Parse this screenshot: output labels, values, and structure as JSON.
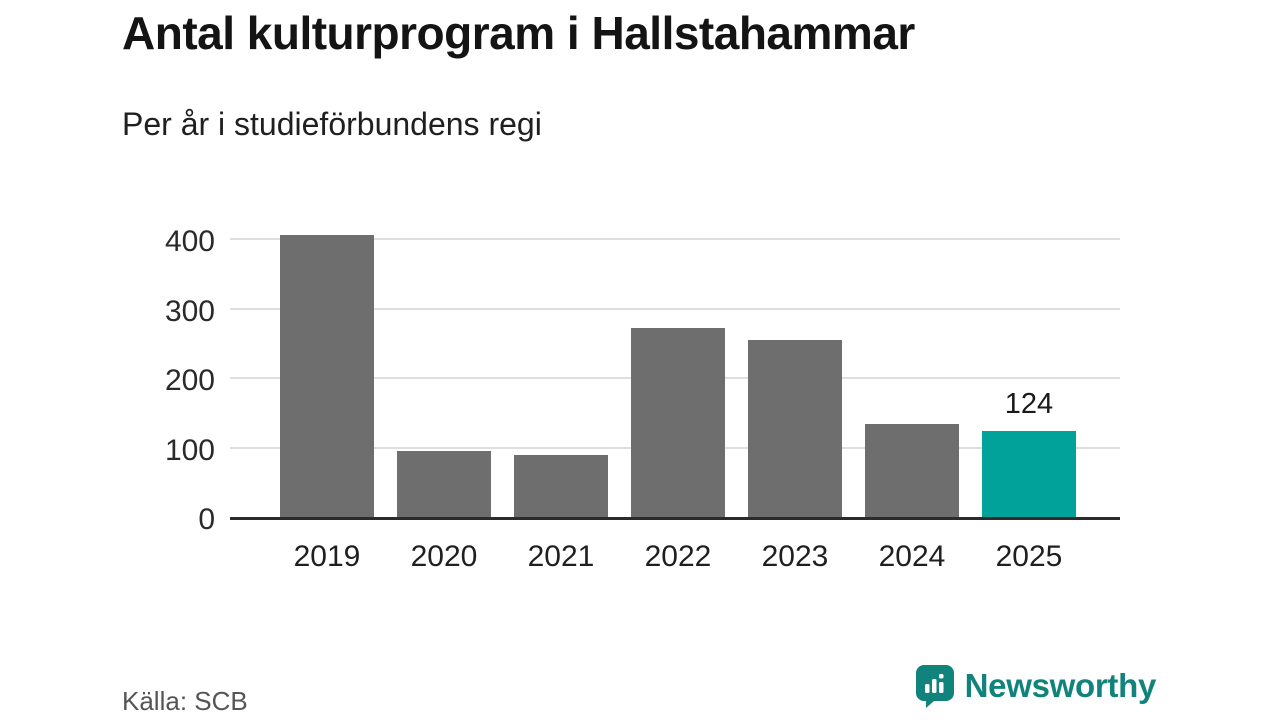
{
  "header": {
    "title": "Antal kulturprogram i Hallstahammar",
    "subtitle": "Per år i studieförbundens regi"
  },
  "footer": {
    "source": "Källa: SCB",
    "brand": "Newsworthy"
  },
  "colors": {
    "bar": "#6e6e6e",
    "highlight": "#00a29a",
    "brand_teal": "#11837d",
    "gridline": "#dedede",
    "axis": "#2b2b2b"
  },
  "chart_data": {
    "type": "bar",
    "title": "Antal kulturprogram i Hallstahammar",
    "subtitle": "Per år i studieförbundens regi",
    "source": "Källa: SCB",
    "categories": [
      "2019",
      "2020",
      "2021",
      "2022",
      "2023",
      "2024",
      "2025"
    ],
    "values": [
      406,
      95,
      89,
      272,
      255,
      134,
      124
    ],
    "value_labels": [
      "",
      "",
      "",
      "",
      "",
      "",
      "124"
    ],
    "highlight_index": 6,
    "bar_color": "#6e6e6e",
    "highlight_color": "#00a29a",
    "xlabel": "",
    "ylabel": "",
    "ylim": [
      0,
      400
    ],
    "yticks": [
      0,
      100,
      200,
      300,
      400
    ],
    "grid": "horizontal",
    "legend": "none"
  }
}
